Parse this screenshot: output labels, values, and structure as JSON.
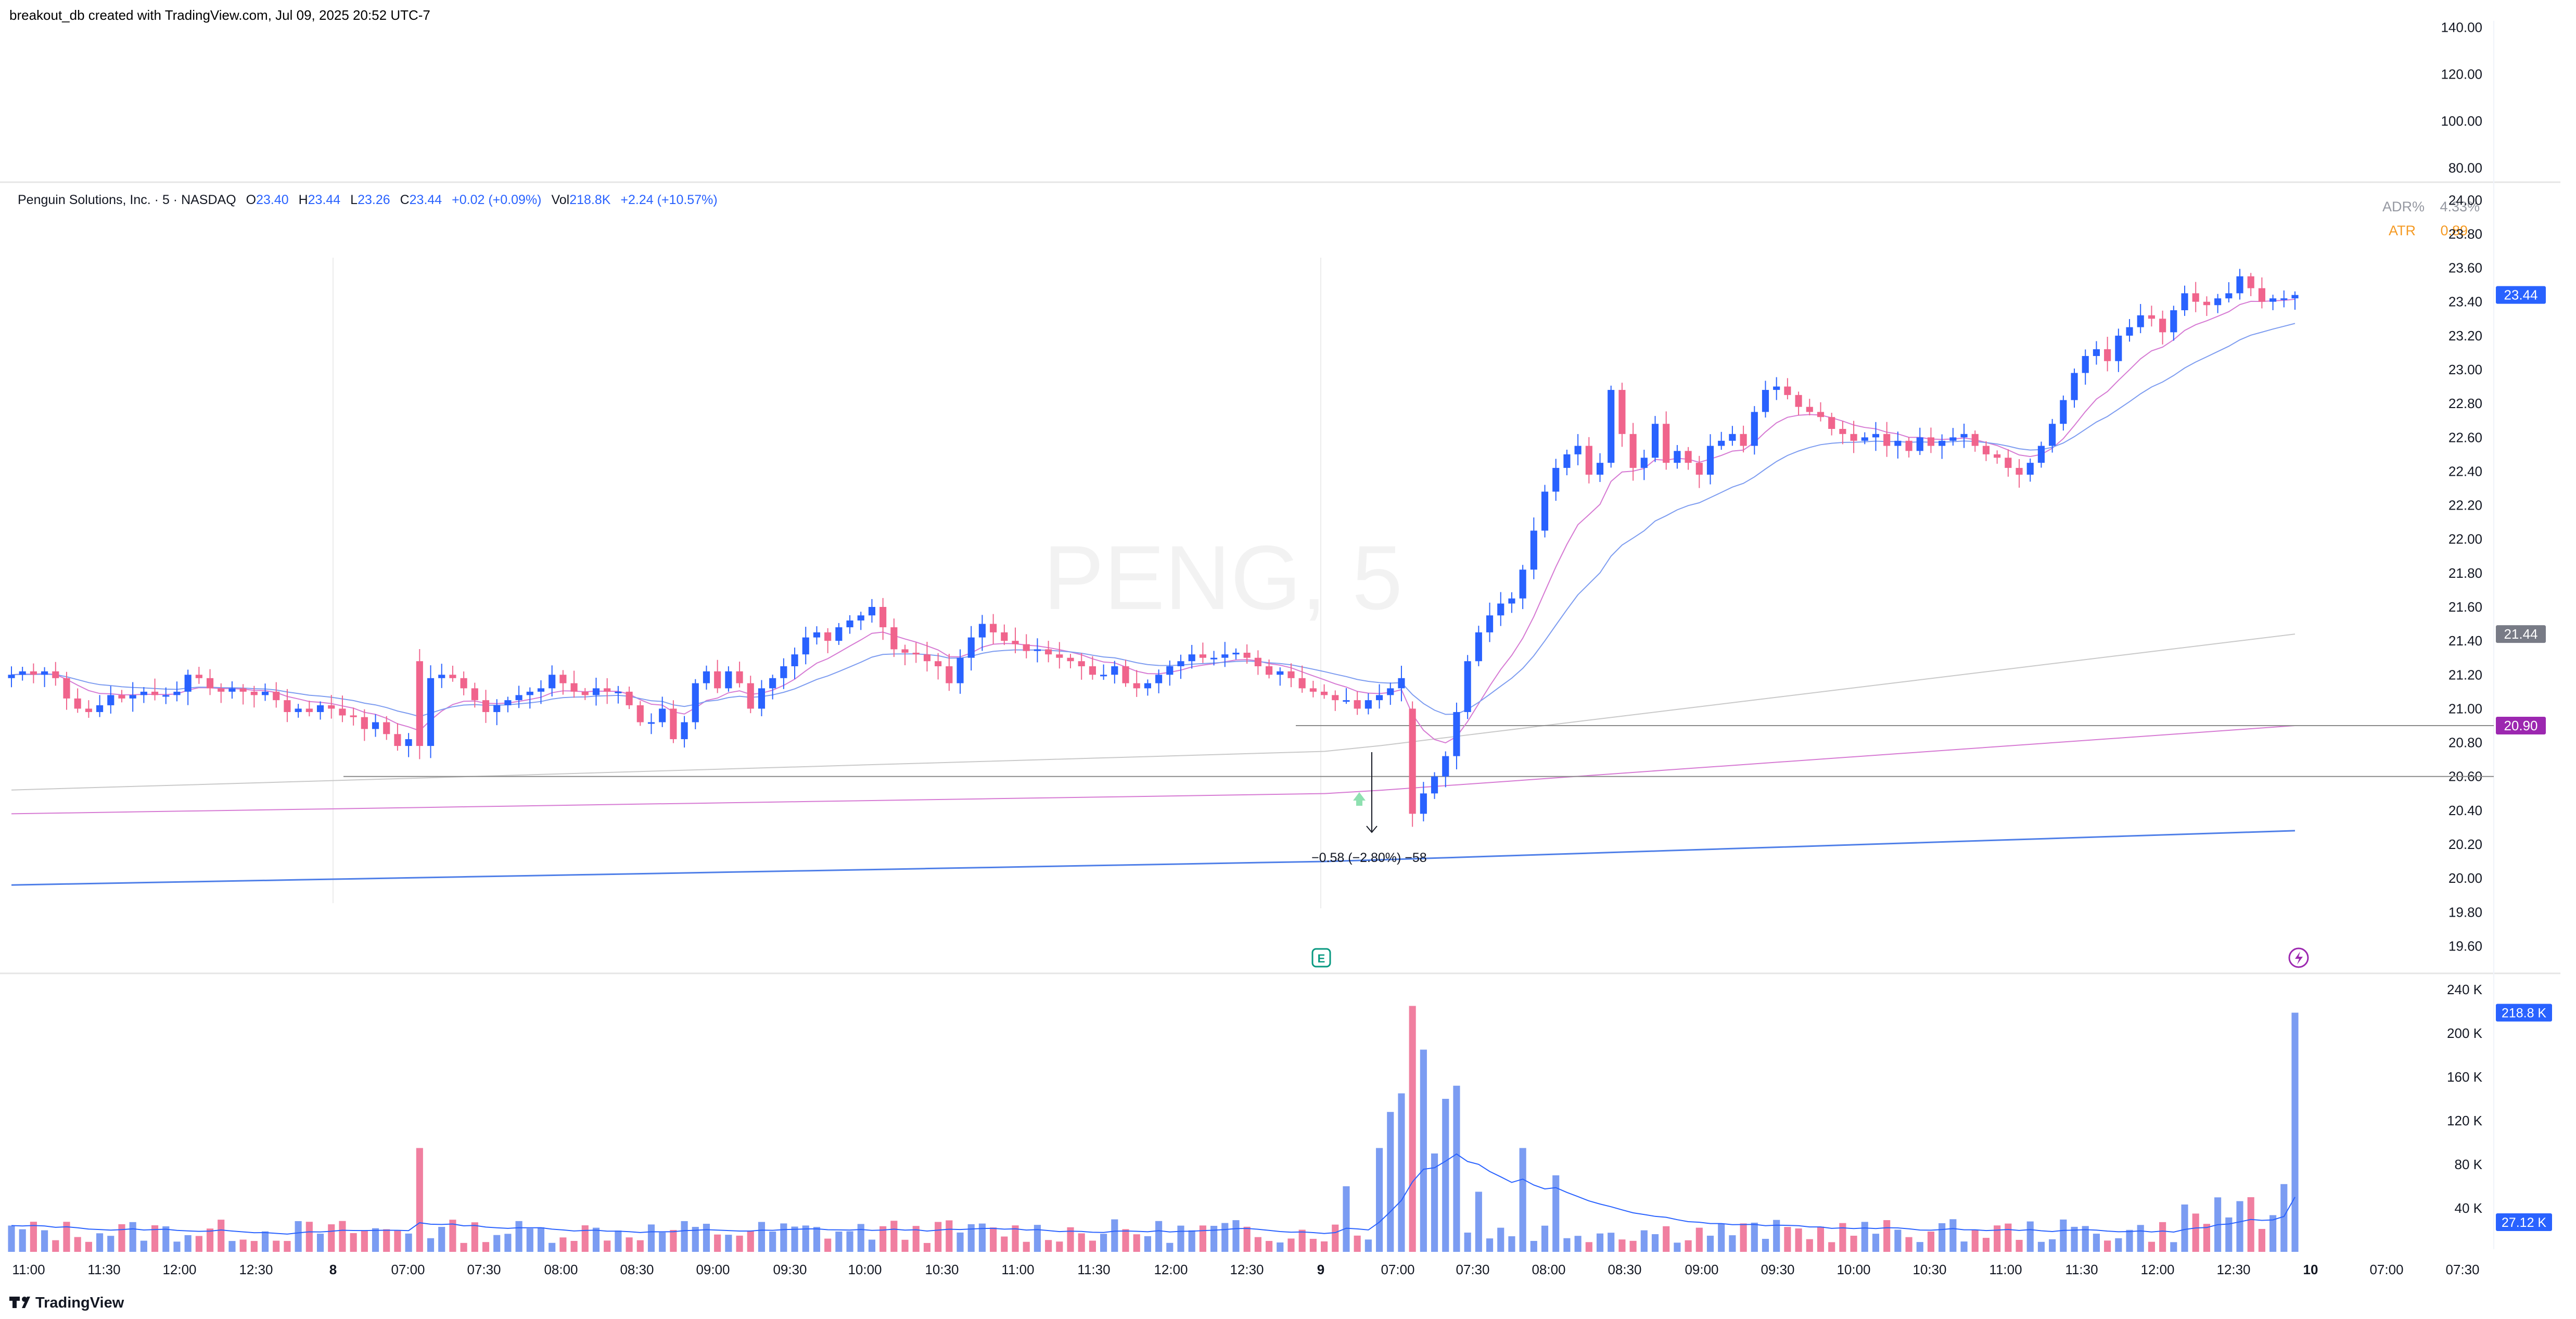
{
  "header": {
    "created_by": "breakout_db created with TradingView.com, Jul 09, 2025 20:52 UTC-7",
    "footer_brand": "TradingView"
  },
  "legend": {
    "symbol": "Penguin Solutions, Inc. · 5 · NASDAQ",
    "o_label": "O",
    "o": "23.40",
    "h_label": "H",
    "h": "23.44",
    "l_label": "L",
    "l": "23.26",
    "c_label": "C",
    "c": "23.44",
    "change": "+0.02 (+0.09%)",
    "vol_label": "Vol",
    "vol": "218.8K",
    "vol_change": "+2.24 (+10.57%)"
  },
  "indicators": {
    "adr_label": "ADR%",
    "adr_value": "4.33%",
    "atr_label": "ATR",
    "atr_value": "0.89"
  },
  "watermark": "PENG, 5",
  "measure_label": "−0.58 (−2.80%) −58",
  "colors": {
    "up": "#2962ff",
    "down": "#f0648c",
    "vol_up": "#7b9cf2",
    "vol_down": "#f07fa0",
    "ema_short": "#d67ad3",
    "ema_long": "#7d9cf0",
    "sma_pink": "#d67ad3",
    "sma_gray": "#c9c9c9",
    "sma_blue": "#4f7fe8",
    "hline": "#8a8a8a",
    "atr": "#f59a23",
    "earnings": "#089981",
    "dividend": "#9c27b0"
  },
  "chart_data": [
    {
      "type": "line",
      "title": "",
      "panel": "top-overlay",
      "y_ticks": [
        "140.00",
        "120.00",
        "100.00",
        "80.00"
      ],
      "ylim": [
        75,
        145
      ]
    },
    {
      "type": "candlestick",
      "panel": "price",
      "ylim": [
        19.5,
        24.05
      ],
      "y_ticks": [
        "24.00",
        "23.80",
        "23.60",
        "23.40",
        "23.20",
        "23.00",
        "22.80",
        "22.60",
        "22.40",
        "22.20",
        "22.00",
        "21.80",
        "21.60",
        "21.40",
        "21.20",
        "21.00",
        "20.80",
        "20.60",
        "20.40",
        "20.20",
        "20.00",
        "19.80",
        "19.60"
      ],
      "price_labels": [
        {
          "text": "23.44",
          "value": 23.44,
          "color": "#2962ff"
        },
        {
          "text": "21.44",
          "value": 21.44,
          "color": "#787b86"
        },
        {
          "text": "20.90",
          "value": 20.9,
          "color": "#9c27b0"
        }
      ],
      "horizontal_lines": [
        20.9,
        20.6
      ],
      "x_ticks": [
        "11:00",
        "11:30",
        "12:00",
        "12:30",
        "8",
        "07:00",
        "07:30",
        "08:00",
        "08:30",
        "09:00",
        "09:30",
        "10:00",
        "10:30",
        "11:00",
        "11:30",
        "12:00",
        "12:30",
        "9",
        "07:00",
        "07:30",
        "08:00",
        "08:30",
        "09:00",
        "09:30",
        "10:00",
        "10:30",
        "11:00",
        "11:30",
        "12:00",
        "12:30",
        "10",
        "07:00",
        "07:30"
      ],
      "x_ticks_bold": [
        "8",
        "9",
        "10"
      ],
      "day2_close": [
        21.18,
        21.2,
        21.18,
        21.12,
        21.05,
        20.98,
        21.02,
        21.05,
        21.08,
        21.1,
        21.12,
        21.2,
        21.15,
        21.1,
        21.08,
        21.12,
        21.1,
        21.1,
        21.02,
        20.92,
        20.92,
        21.0,
        20.82,
        20.92,
        21.15,
        21.22,
        21.12,
        21.22,
        21.15,
        21.0,
        21.12,
        21.18,
        21.25,
        21.32,
        21.42,
        21.45,
        21.4,
        21.48,
        21.52,
        21.55,
        21.6,
        21.48,
        21.35,
        21.33,
        21.32,
        21.28,
        21.25,
        21.15,
        21.3,
        21.42,
        21.5,
        21.45,
        21.4,
        21.38,
        21.34,
        21.35,
        21.32,
        21.3,
        21.28,
        21.25,
        21.2,
        21.2,
        21.25,
        21.15,
        21.12,
        21.15,
        21.2,
        21.25,
        21.28,
        21.32,
        21.3,
        21.3,
        21.32,
        21.33,
        21.3,
        21.25,
        21.2,
        21.22,
        21.18,
        21.12,
        21.1,
        21.08,
        21.05,
        21.05,
        21.0,
        21.05,
        21.08,
        21.12,
        21.18
      ],
      "day3_close": [
        20.5,
        20.6,
        20.72,
        20.98,
        21.28,
        21.45,
        21.55,
        21.62,
        21.65,
        21.82,
        22.05,
        22.28,
        22.42,
        22.5,
        22.55,
        22.38,
        22.45,
        22.88,
        22.62,
        22.42,
        22.48,
        22.68,
        22.45,
        22.52,
        22.45,
        22.38,
        22.55,
        22.58,
        22.62,
        22.55,
        22.75,
        22.88,
        22.9,
        22.85,
        22.78,
        22.75,
        22.72,
        22.65,
        22.62,
        22.58,
        22.6,
        22.62,
        22.55,
        22.58,
        22.52,
        22.6,
        22.55,
        22.58,
        22.6,
        22.62,
        22.55,
        22.5,
        22.48,
        22.42,
        22.38,
        22.45,
        22.55,
        22.68,
        22.82,
        22.98,
        23.08,
        23.12,
        23.05,
        23.2,
        23.25,
        23.32,
        23.3,
        23.22,
        23.35,
        23.45,
        23.4,
        23.38,
        23.42,
        23.45,
        23.55,
        23.48,
        23.4,
        23.42,
        23.42,
        23.44
      ],
      "series_names": []
    },
    {
      "type": "bar",
      "panel": "volume",
      "ylim": [
        0,
        250000
      ],
      "y_ticks": [
        "240 K",
        "200 K",
        "160 K",
        "120 K",
        "80 K",
        "40 K"
      ],
      "last_volume_label": "218.8 K",
      "volume_ma_label": "27.12 K"
    }
  ]
}
